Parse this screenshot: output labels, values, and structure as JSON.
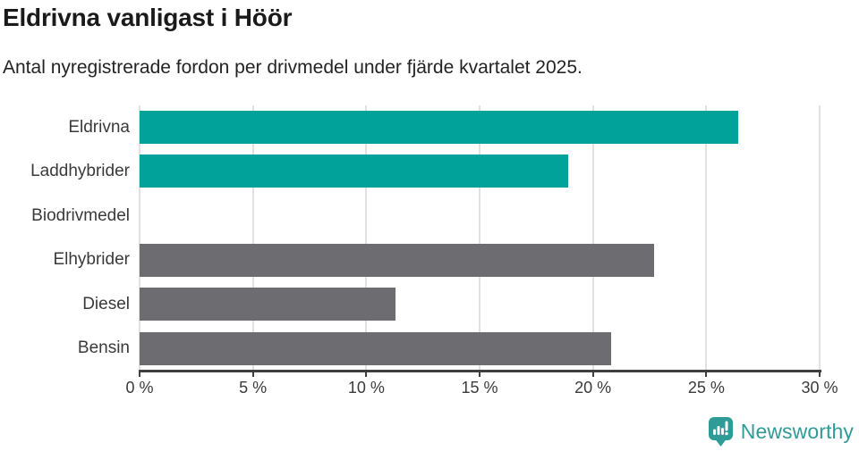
{
  "header": {
    "title": "Eldrivna vanligast i Höör",
    "subtitle": "Antal nyregistrerade fordon per drivmedel under fjärde kvartalet 2025."
  },
  "chart_data": {
    "type": "bar",
    "orientation": "horizontal",
    "title": "Eldrivna vanligast i Höör",
    "subtitle": "Antal nyregistrerade fordon per drivmedel under fjärde kvartalet 2025.",
    "categories": [
      "Eldrivna",
      "Laddhybrider",
      "Biodrivmedel",
      "Elhybrider",
      "Diesel",
      "Bensin"
    ],
    "values": [
      26.4,
      18.9,
      0,
      22.7,
      11.3,
      20.8
    ],
    "unit": "%",
    "bar_colors": [
      "#00a299",
      "#00a299",
      "#6c6c71",
      "#6c6c71",
      "#6c6c71",
      "#6c6c71"
    ],
    "highlight_color": "#00a299",
    "default_color": "#6c6c71",
    "xlim": [
      0,
      30
    ],
    "xtick_values": [
      0,
      5,
      10,
      15,
      20,
      25,
      30
    ],
    "xtick_labels": [
      "0 %",
      "5 %",
      "10 %",
      "15 %",
      "20 %",
      "25 %",
      "30 %"
    ],
    "grid": true,
    "gridline_color": "#e1e1e1",
    "axis_color": "#3f3f3f",
    "label_color": "#3a3a3a",
    "legend": "none"
  },
  "footer": {
    "brand": "Newsworthy",
    "brand_color": "#2f9b97",
    "logo_icon": "bar-chart-speech-bubble-icon"
  }
}
